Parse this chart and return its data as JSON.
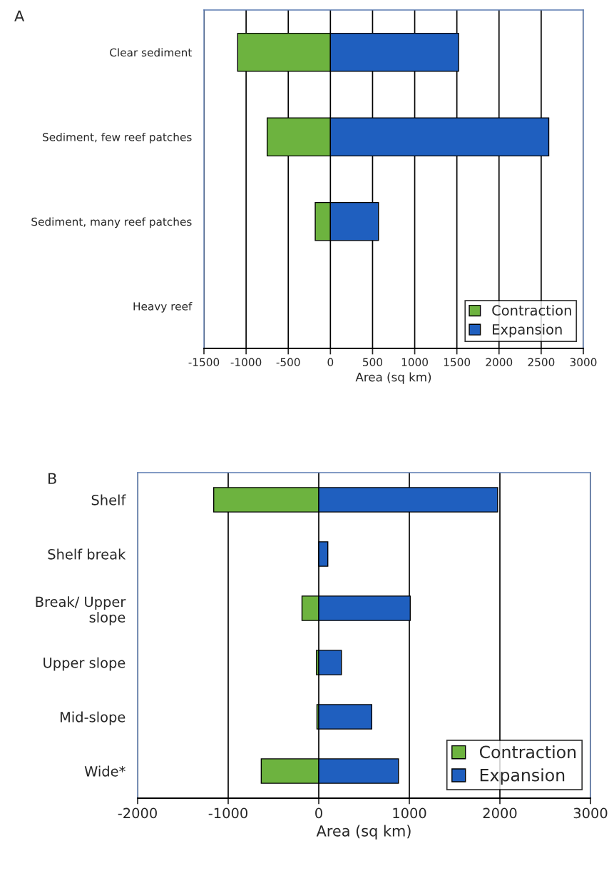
{
  "chart_data": [
    {
      "type": "bar",
      "title": "A",
      "orientation": "horizontal",
      "stacked": true,
      "xlabel": "Area (sq km)",
      "categories": [
        "Clear sediment",
        "Sediment, few reef patches",
        "Sediment, many reef patches",
        "Heavy reef"
      ],
      "series": [
        {
          "name": "Contraction",
          "color": "#6db33f",
          "values": [
            -1100,
            -750,
            -180,
            0
          ]
        },
        {
          "name": "Expansion",
          "color": "#1f5fbf",
          "values": [
            1520,
            2590,
            570,
            0
          ]
        }
      ],
      "xlim": [
        -1500,
        3000
      ],
      "xticks": [
        -1500,
        -1000,
        -500,
        0,
        500,
        1000,
        1500,
        2000,
        2500,
        3000
      ],
      "grid": "x",
      "legend": "bottom right"
    },
    {
      "type": "bar",
      "title": "B",
      "orientation": "horizontal",
      "stacked": true,
      "xlabel": "Area (sq km)",
      "categories": [
        "Shelf",
        "Shelf break",
        "Break/ Upper\nslope",
        "Upper slope",
        "Mid-slope",
        "Wide*"
      ],
      "series": [
        {
          "name": "Contraction",
          "color": "#6db33f",
          "values": [
            -1160,
            0,
            -185,
            -25,
            -20,
            -635
          ]
        },
        {
          "name": "Expansion",
          "color": "#1f5fbf",
          "values": [
            1975,
            100,
            1010,
            250,
            585,
            880
          ]
        }
      ],
      "xlim": [
        -2000,
        3000
      ],
      "xticks": [
        -2000,
        -1000,
        0,
        1000,
        2000,
        3000
      ],
      "grid": "x",
      "legend": "bottom right"
    }
  ]
}
